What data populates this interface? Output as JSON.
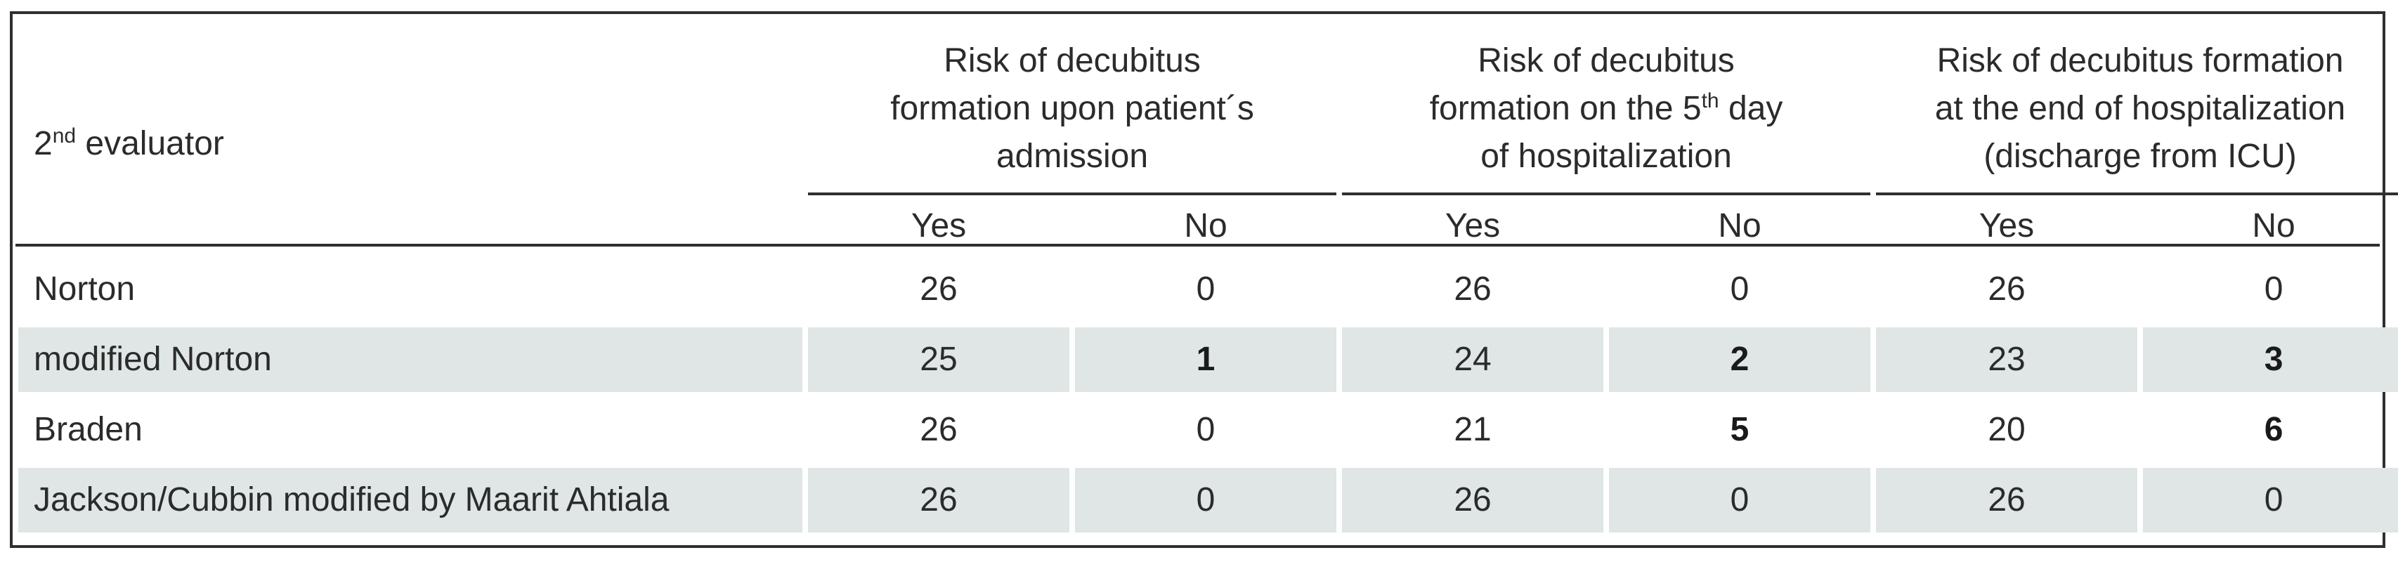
{
  "table": {
    "corner": {
      "base": "2",
      "sup": "nd",
      "rest": " evaluator"
    },
    "groups": [
      {
        "line1": "Risk of decubitus",
        "line2": "formation upon patient´s",
        "line3": "admission",
        "sup": ""
      },
      {
        "line1": "Risk of decubitus",
        "line2_pre": "formation on the 5",
        "sup": "th",
        "line2_post": " day",
        "line3": "of hospitalization"
      },
      {
        "line1": "Risk of decubitus formation",
        "line2": "at the end of hospitalization",
        "line3": "(discharge from ICU)",
        "sup": ""
      }
    ],
    "subheaders": [
      "Yes",
      "No",
      "Yes",
      "No",
      "Yes",
      "No"
    ],
    "rows": [
      {
        "label": "Norton",
        "cells": [
          "26",
          "0",
          "26",
          "0",
          "26",
          "0"
        ]
      },
      {
        "label": "modified Norton",
        "cells": [
          "25",
          "1",
          "24",
          "2",
          "23",
          "3"
        ]
      },
      {
        "label": "Braden",
        "cells": [
          "26",
          "0",
          "21",
          "5",
          "20",
          "6"
        ]
      },
      {
        "label": "Jackson/Cubbin modified by Maarit Ahtiala",
        "cells": [
          "26",
          "0",
          "26",
          "0",
          "26",
          "0"
        ]
      }
    ]
  }
}
